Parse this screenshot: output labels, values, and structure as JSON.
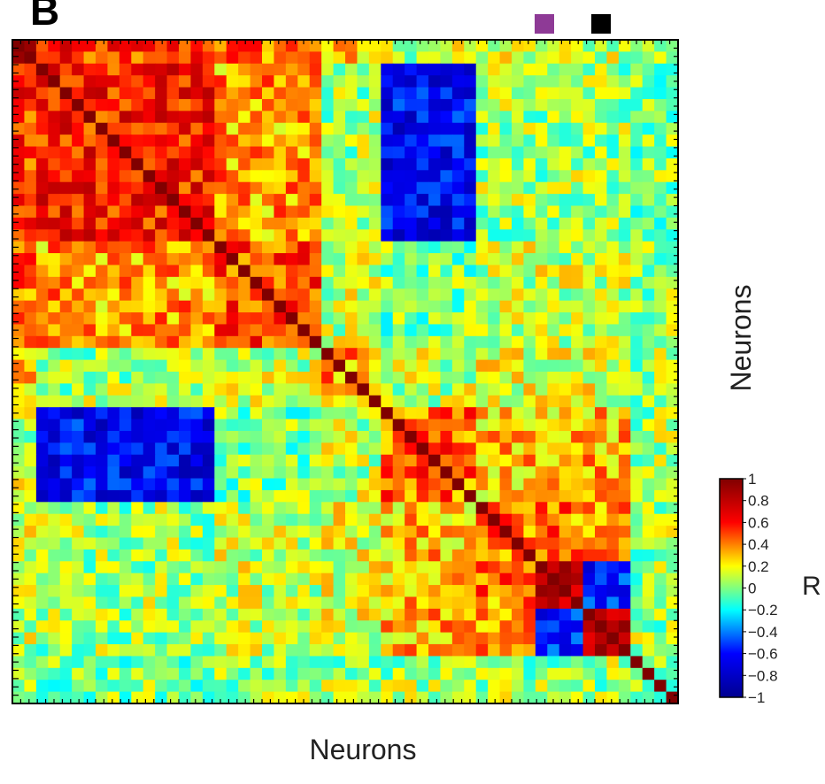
{
  "panel": {
    "letter": "B"
  },
  "chart_data": {
    "type": "heatmap",
    "x_label": "Neurons",
    "y_label": "Neurons",
    "colorbar": {
      "label": "R",
      "range": [
        -1,
        1
      ],
      "ticks": [
        "1",
        "0.8",
        "0.6",
        "0.4",
        "0.2",
        "0",
        "−0.2",
        "−0.4",
        "−0.6",
        "−0.8",
        "−1"
      ],
      "tick_values": [
        1,
        0.8,
        0.6,
        0.4,
        0.2,
        0,
        -0.2,
        -0.4,
        -0.6,
        -0.8,
        -1
      ],
      "colormap": "jet",
      "colors": [
        "#00008f",
        "#0000ff",
        "#00ffff",
        "#ffff00",
        "#ff0000",
        "#800000"
      ]
    },
    "n_neurons": 56,
    "cluster_bounds": [
      0,
      2,
      17,
      26,
      31,
      39,
      52,
      56
    ],
    "cluster_mean_R": [
      [
        0.85,
        0.55,
        0.45,
        0.25,
        0.1,
        0.1,
        0.05
      ],
      [
        0.55,
        0.6,
        0.35,
        0.05,
        -0.65,
        0.05,
        0.0
      ],
      [
        0.45,
        0.35,
        0.5,
        0.1,
        0.0,
        0.1,
        0.05
      ],
      [
        0.25,
        0.05,
        0.1,
        0.35,
        0.1,
        0.15,
        0.05
      ],
      [
        0.1,
        -0.65,
        0.0,
        0.1,
        0.45,
        0.3,
        0.05
      ],
      [
        0.1,
        0.05,
        0.1,
        0.15,
        0.3,
        0.4,
        0.05
      ],
      [
        0.05,
        0.0,
        0.05,
        0.05,
        0.05,
        0.05,
        0.05
      ]
    ],
    "sub_blocks": [
      {
        "rows": [
          44,
          48
        ],
        "cols": [
          44,
          48
        ],
        "mean_R": 0.85
      },
      {
        "rows": [
          48,
          52
        ],
        "cols": [
          48,
          52
        ],
        "mean_R": 0.85
      },
      {
        "rows": [
          44,
          48
        ],
        "cols": [
          48,
          52
        ],
        "mean_R": -0.6
      },
      {
        "rows": [
          48,
          52
        ],
        "cols": [
          44,
          48
        ],
        "mean_R": -0.6
      }
    ],
    "diagonal_R": 1,
    "grid": false
  },
  "markers": [
    {
      "name": "purple-marker",
      "color": "#8e3a96"
    },
    {
      "name": "black-marker",
      "color": "#000000"
    }
  ]
}
